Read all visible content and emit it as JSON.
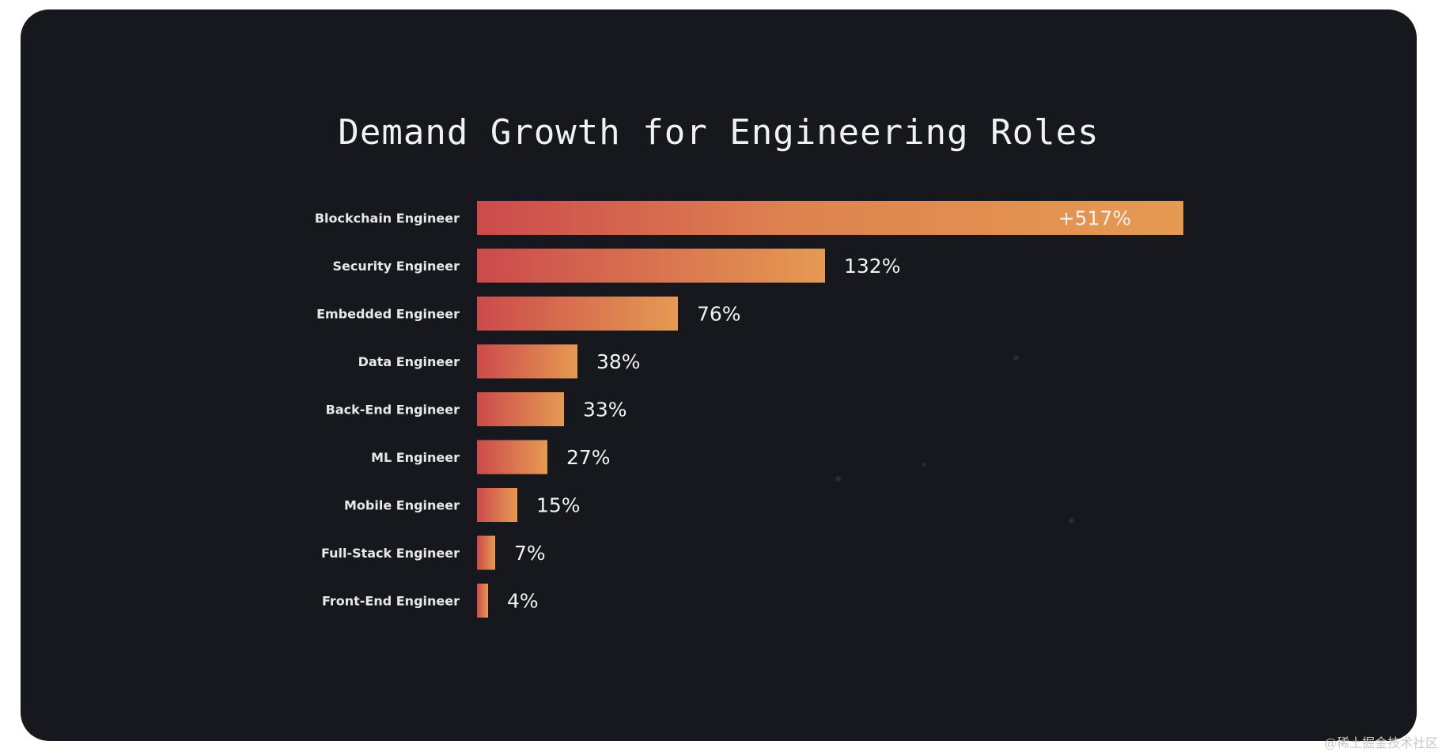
{
  "chart_data": {
    "type": "bar",
    "orientation": "horizontal",
    "title": "Demand Growth for Engineering Roles",
    "categories": [
      "Blockchain Engineer",
      "Security Engineer",
      "Embedded Engineer",
      "Data Engineer",
      "Back-End Engineer",
      "ML Engineer",
      "Mobile Engineer",
      "Full-Stack Engineer",
      "Front-End Engineer"
    ],
    "values": [
      517,
      132,
      76,
      38,
      33,
      27,
      15,
      7,
      4
    ],
    "value_labels": [
      "+517%",
      "132%",
      "76%",
      "38%",
      "33%",
      "27%",
      "15%",
      "7%",
      "4%"
    ],
    "unit": "%",
    "xlabel": "",
    "ylabel": "",
    "grid": false,
    "legend": "none",
    "colors": {
      "bar_start": "#cc4a4c",
      "bar_end": "#e59a52",
      "background": "#17181d",
      "text": "#f1f1f1"
    }
  },
  "watermark": "@稀土掘金技术社区"
}
